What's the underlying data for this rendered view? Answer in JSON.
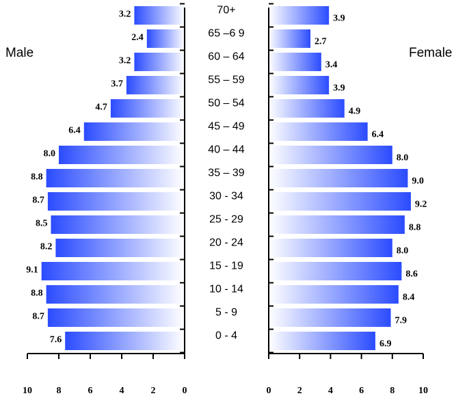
{
  "chart_data": {
    "type": "bar",
    "subtype": "population-pyramid",
    "left_label": "Male",
    "right_label": "Female",
    "categories": [
      "0 - 4",
      "5 - 9",
      "10 - 14",
      "15 - 19",
      "20 - 24",
      "25 - 29",
      "30 - 34",
      "35 – 39",
      "40 – 44",
      "45 – 49",
      "50 – 54",
      "55 – 59",
      "60 – 64",
      "65 –6 9",
      "70+"
    ],
    "series": [
      {
        "name": "Male",
        "values": [
          7.6,
          8.7,
          8.8,
          9.1,
          8.2,
          8.5,
          8.7,
          8.8,
          8.0,
          6.4,
          4.7,
          3.7,
          3.2,
          2.4,
          3.2
        ],
        "color": "#2b4cff"
      },
      {
        "name": "Female",
        "values": [
          6.9,
          7.9,
          8.4,
          8.6,
          8.0,
          8.8,
          9.2,
          9.0,
          8.0,
          6.4,
          4.9,
          3.9,
          3.4,
          2.7,
          3.9
        ],
        "color": "#2b4cff"
      }
    ],
    "value_labels": {
      "male": [
        "7.6",
        "8.7",
        "8.8",
        "9.1",
        "8.2",
        "8.5",
        "8.7",
        "8.8",
        "8.0",
        "6.4",
        "4.7",
        "3.7",
        "3.2",
        "2.4",
        "3.2"
      ],
      "female": [
        "6.9",
        "7.9",
        "8.4",
        "8.6",
        "8.0",
        "8.8",
        "9.2",
        "9.0",
        "8.0",
        "6.4",
        "4.9",
        "3.9",
        "3.4",
        "2.7",
        "3.9"
      ]
    },
    "male_axis": {
      "ticks": [
        "10",
        "8",
        "6",
        "4",
        "2",
        "0"
      ],
      "xlim": [
        10,
        0
      ]
    },
    "female_axis": {
      "ticks": [
        "0",
        "2",
        "4",
        "6",
        "8",
        "10"
      ],
      "xlim": [
        0,
        10
      ]
    },
    "grid": false,
    "legend": "none"
  }
}
